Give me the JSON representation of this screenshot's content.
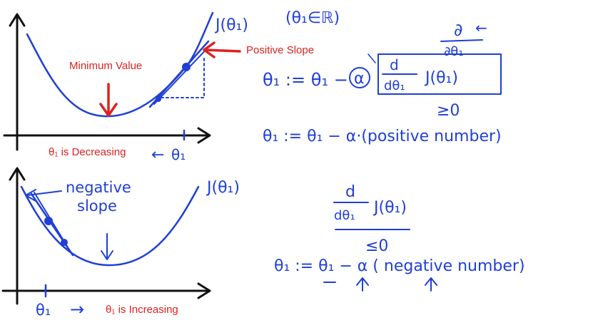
{
  "colors": {
    "ink": "#1f3fd6",
    "annotation": "#e02020",
    "axis": "#111111"
  },
  "top_plot": {
    "curve_label": "J(θ₁)",
    "domain_note": "(θ₁∈ℝ)",
    "min_label": "Minimum Value",
    "slope_label": "Positive Slope",
    "direction_label": "θ₁ is Decreasing",
    "axis_var": "θ₁",
    "move_arrow": "←"
  },
  "bottom_plot": {
    "curve_label": "J(θ₁)",
    "slope_label_1": "negative",
    "slope_label_2": "slope",
    "axis_var": "θ₁",
    "move_arrow": "→",
    "direction_label": "θ₁  is Increasing"
  },
  "top_equation": {
    "update_lhs": "θ₁ := θ₁ −",
    "alpha": "α",
    "deriv_num": "d",
    "deriv_den": "dθ₁",
    "cost": "J(θ₁)",
    "partial_num": "∂",
    "partial_den": "∂θ₁",
    "partial_arrow": "←",
    "condition": "≥0",
    "result": "θ₁ := θ₁ − α·(positive number)"
  },
  "bottom_equation": {
    "deriv_num": "d",
    "deriv_den": "dθ₁",
    "cost": "J(θ₁)",
    "condition": "≤0",
    "result": "θ₁ := θ₁ − α ( negative number)"
  }
}
